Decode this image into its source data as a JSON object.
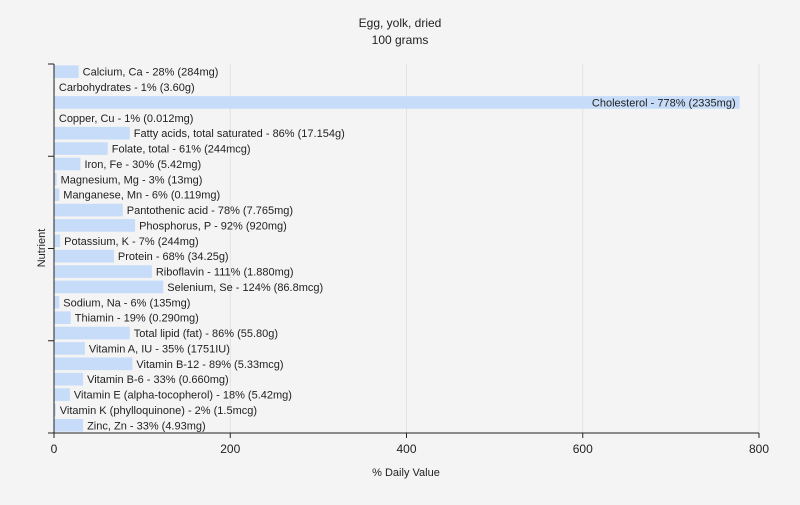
{
  "chart_data": {
    "type": "bar",
    "orientation": "horizontal",
    "title": "Egg, yolk, dried",
    "subtitle": "100 grams",
    "xlabel": "% Daily Value",
    "ylabel": "Nutrient",
    "xlim": [
      0,
      800
    ],
    "xticks": [
      0,
      200,
      400,
      600,
      800
    ],
    "grid": true,
    "bar_color": "#c6dcf8",
    "grid_color": "#e2e2e2",
    "axis_color": "#222222",
    "categories": [
      "Calcium, Ca",
      "Carbohydrates",
      "Cholesterol",
      "Copper, Cu",
      "Fatty acids, total saturated",
      "Folate, total",
      "Iron, Fe",
      "Magnesium, Mg",
      "Manganese, Mn",
      "Pantothenic acid",
      "Phosphorus, P",
      "Potassium, K",
      "Protein",
      "Riboflavin",
      "Selenium, Se",
      "Sodium, Na",
      "Thiamin",
      "Total lipid (fat)",
      "Vitamin A, IU",
      "Vitamin B-12",
      "Vitamin B-6",
      "Vitamin E (alpha-tocopherol)",
      "Vitamin K (phylloquinone)",
      "Zinc, Zn"
    ],
    "values": [
      28,
      1,
      778,
      1,
      86,
      61,
      30,
      3,
      6,
      78,
      92,
      7,
      68,
      111,
      124,
      6,
      19,
      86,
      35,
      89,
      33,
      18,
      2,
      33
    ],
    "labels": [
      "Calcium, Ca - 28% (284mg)",
      "Carbohydrates - 1% (3.60g)",
      "Cholesterol - 778% (2335mg)",
      "Copper, Cu - 1% (0.012mg)",
      "Fatty acids, total saturated - 86% (17.154g)",
      "Folate, total - 61% (244mcg)",
      "Iron, Fe - 30% (5.42mg)",
      "Magnesium, Mg - 3% (13mg)",
      "Manganese, Mn - 6% (0.119mg)",
      "Pantothenic acid - 78% (7.765mg)",
      "Phosphorus, P - 92% (920mg)",
      "Potassium, K - 7% (244mg)",
      "Protein - 68% (34.25g)",
      "Riboflavin - 111% (1.880mg)",
      "Selenium, Se - 124% (86.8mcg)",
      "Sodium, Na - 6% (135mg)",
      "Thiamin - 19% (0.290mg)",
      "Total lipid (fat) - 86% (55.80g)",
      "Vitamin A, IU - 35% (1751IU)",
      "Vitamin B-12 - 89% (5.33mcg)",
      "Vitamin B-6 - 33% (0.660mg)",
      "Vitamin E (alpha-tocopherol) - 18% (5.42mg)",
      "Vitamin K (phylloquinone) - 2% (1.5mcg)",
      "Zinc, Zn - 33% (4.93mg)"
    ]
  }
}
